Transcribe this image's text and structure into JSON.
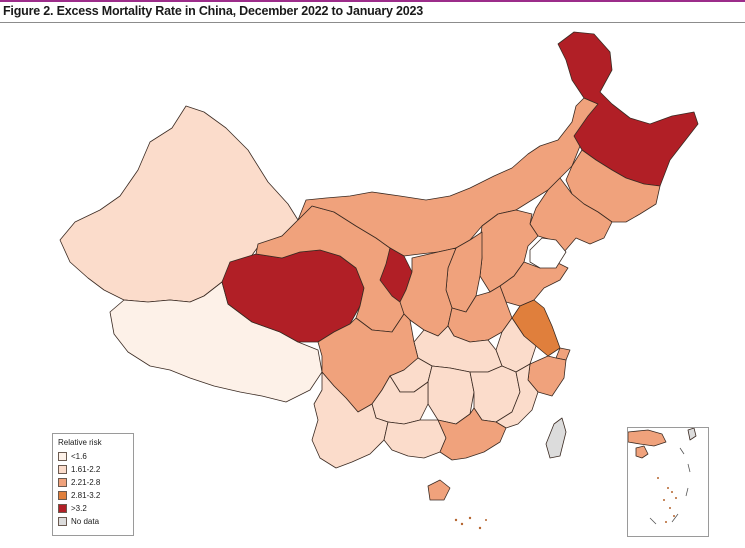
{
  "figure": {
    "title": "Figure 2. Excess Mortality Rate in China, December 2022 to January 2023"
  },
  "legend": {
    "title": "Relative risk",
    "items": [
      {
        "label": "<1.6",
        "color": "#fdf1e8"
      },
      {
        "label": "1.61-2.2",
        "color": "#fbdccb"
      },
      {
        "label": "2.21-2.8",
        "color": "#f0a27c"
      },
      {
        "label": "2.81-3.2",
        "color": "#e07f3c"
      },
      {
        "label": ">3.2",
        "color": "#b11f26"
      },
      {
        "label": "No data",
        "color": "#dcdcdc"
      }
    ]
  },
  "map": {
    "category_colors": {
      "lt_1_6": "#fdf1e8",
      "1_61_2_2": "#fbdccb",
      "2_21_2_8": "#f0a27c",
      "2_81_3_2": "#e07f3c",
      "gt_3_2": "#b11f26",
      "no_data": "#dcdcdc"
    }
  }
}
